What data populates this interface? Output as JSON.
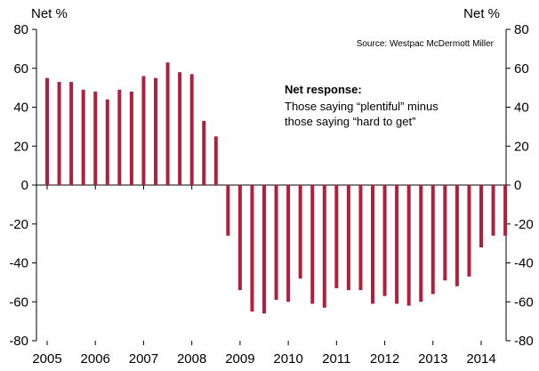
{
  "chart_data": {
    "type": "bar",
    "title": "",
    "xlabel": "",
    "ylabel_left": "Net %",
    "ylabel_right": "Net %",
    "ylim": [
      -80,
      80
    ],
    "yticks": [
      80,
      60,
      40,
      20,
      0,
      -20,
      -40,
      -60,
      -80
    ],
    "x_tick_labels": [
      "2005",
      "2006",
      "2007",
      "2008",
      "2009",
      "2010",
      "2011",
      "2012",
      "2013",
      "2014"
    ],
    "x_start_year": 2005,
    "x_end_year": 2014.7,
    "grid": false,
    "bar_color": "#b0203c",
    "source": "Source: Westpac McDermott Miller",
    "annotation": {
      "title": "Net response:",
      "lines": [
        "Those saying “plentiful” minus",
        "those saying “hard to get”"
      ]
    },
    "series": [
      {
        "x": [
          2005.0,
          2005.25,
          2005.5,
          2005.75,
          2006.0,
          2006.25,
          2006.5,
          2006.75,
          2007.0,
          2007.25,
          2007.5,
          2007.75,
          2008.0,
          2008.25,
          2008.5,
          2008.75,
          2009.0,
          2009.25,
          2009.5,
          2009.75,
          2010.0,
          2010.25,
          2010.5,
          2010.75,
          2011.0,
          2011.25,
          2011.5,
          2011.75,
          2012.0,
          2012.25,
          2012.5,
          2012.75,
          2013.0,
          2013.25,
          2013.5,
          2013.75,
          2014.0,
          2014.25,
          2014.5
        ],
        "values": [
          55,
          53,
          53,
          49,
          48,
          44,
          49,
          48,
          56,
          55,
          63,
          58,
          57,
          33,
          25,
          -26,
          -54,
          -65,
          -66,
          -59,
          -60,
          -48,
          -61,
          -63,
          -53,
          -54,
          -54,
          -61,
          -57,
          -61,
          -62,
          -60,
          -56,
          -49,
          -52,
          -47,
          -32,
          -26,
          -26
        ]
      }
    ]
  }
}
